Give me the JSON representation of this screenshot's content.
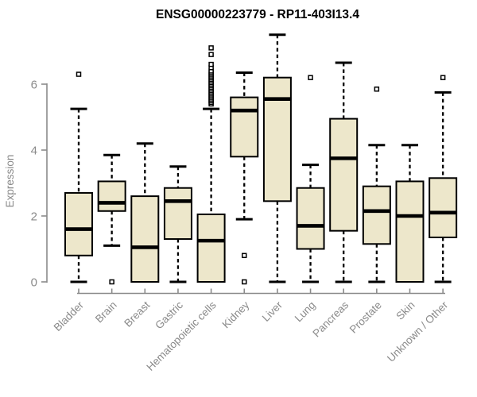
{
  "title": "ENSG00000223779 - RP11-403I13.4",
  "chart_data": {
    "type": "boxplot",
    "title": "ENSG00000223779 - RP11-403I13.4",
    "xlabel": "",
    "ylabel": "Expression",
    "yticks": [
      0,
      2,
      4,
      6
    ],
    "ylim": [
      0,
      7.6
    ],
    "grid": false,
    "legend": "none",
    "colors": {
      "box_fill": "#ede7cb",
      "box_stroke": "#000000",
      "median": "#000000",
      "whisker": "#000000",
      "axis": "#8a8a8a",
      "text": "#8a8a8a",
      "title": "#000000",
      "background": "#ffffff"
    },
    "categories": [
      {
        "label": "Bladder",
        "min": 0,
        "q1": 0.8,
        "median": 1.6,
        "q3": 2.7,
        "max": 5.25,
        "outliers": [
          6.3
        ]
      },
      {
        "label": "Brain",
        "min": 1.1,
        "q1": 2.15,
        "median": 2.4,
        "q3": 3.05,
        "max": 3.85,
        "outliers": [
          0
        ]
      },
      {
        "label": "Breast",
        "min": 0,
        "q1": 0,
        "median": 1.05,
        "q3": 2.6,
        "max": 4.2,
        "outliers": []
      },
      {
        "label": "Gastric",
        "min": 0,
        "q1": 1.3,
        "median": 2.45,
        "q3": 2.85,
        "max": 3.5,
        "outliers": []
      },
      {
        "label": "Hematopoietic cells",
        "min": 0,
        "q1": 0,
        "median": 1.25,
        "q3": 2.05,
        "max": 5.25,
        "outliers": [
          5.4,
          5.45,
          5.5,
          5.55,
          5.6,
          5.65,
          5.7,
          5.75,
          5.8,
          5.85,
          5.9,
          5.95,
          6.0,
          6.05,
          6.1,
          6.15,
          6.2,
          6.25,
          6.3,
          6.35,
          6.4,
          6.5,
          6.6,
          6.9,
          7.1
        ]
      },
      {
        "label": "Kidney",
        "min": 1.9,
        "q1": 3.8,
        "median": 5.2,
        "q3": 5.6,
        "max": 6.35,
        "outliers": [
          0.8,
          0
        ]
      },
      {
        "label": "Liver",
        "min": 0,
        "q1": 2.45,
        "median": 5.55,
        "q3": 6.2,
        "max": 7.5,
        "outliers": []
      },
      {
        "label": "Lung",
        "min": 0,
        "q1": 1.0,
        "median": 1.7,
        "q3": 2.85,
        "max": 3.55,
        "outliers": [
          6.2
        ]
      },
      {
        "label": "Pancreas",
        "min": 0,
        "q1": 1.55,
        "median": 3.75,
        "q3": 4.95,
        "max": 6.65,
        "outliers": []
      },
      {
        "label": "Prostate",
        "min": 0,
        "q1": 1.15,
        "median": 2.15,
        "q3": 2.9,
        "max": 4.15,
        "outliers": [
          5.85
        ]
      },
      {
        "label": "Skin",
        "min": 0,
        "q1": 0,
        "median": 2.0,
        "q3": 3.05,
        "max": 4.15,
        "outliers": []
      },
      {
        "label": "Unknown / Other",
        "min": 0,
        "q1": 1.35,
        "median": 2.1,
        "q3": 3.15,
        "max": 5.75,
        "outliers": [
          6.2
        ]
      }
    ]
  }
}
